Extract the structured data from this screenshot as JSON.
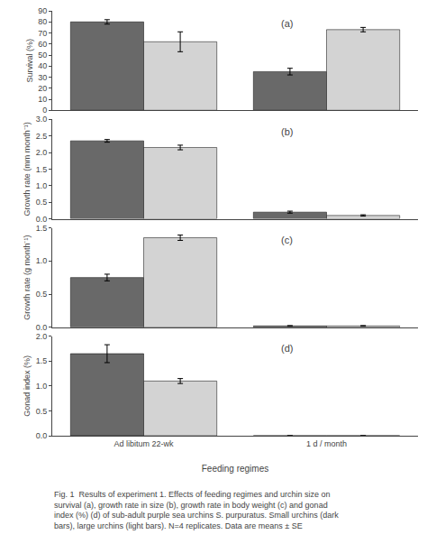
{
  "chart_data": [
    {
      "type": "bar",
      "title": "(a)",
      "ylabel": "Survival (%)",
      "categories": [
        "Ad libitum 22-wk",
        "1 d / month"
      ],
      "series": [
        {
          "color": "#696969",
          "values": [
            80,
            35
          ],
          "errors": [
            2,
            3
          ]
        },
        {
          "color": "#d3d3d3",
          "values": [
            62,
            73
          ],
          "errors": [
            9,
            2
          ]
        }
      ],
      "ylim": [
        0,
        90
      ],
      "yticks": [
        0,
        10,
        20,
        30,
        40,
        50,
        60,
        70,
        80,
        90
      ],
      "grid": false,
      "tick_labels": "y"
    },
    {
      "type": "bar",
      "title": "(b)",
      "ylabel": "Growth rate (mm month⁻¹)",
      "categories": [
        "Ad libitum 22-wk",
        "1 d / month"
      ],
      "series": [
        {
          "color": "#696969",
          "values": [
            2.35,
            0.2
          ],
          "errors": [
            0.04,
            0.03
          ]
        },
        {
          "color": "#d3d3d3",
          "values": [
            2.15,
            0.1
          ],
          "errors": [
            0.07,
            0.02
          ]
        }
      ],
      "ylim": [
        0,
        3
      ],
      "yticks": [
        {
          "value": 0,
          "label": "0.0"
        },
        0.5,
        {
          "value": 1.0,
          "label": "1.0"
        },
        1.5,
        {
          "value": 2.0,
          "label": "2.0"
        },
        2.5,
        {
          "value": 3.0,
          "label": "3.0"
        }
      ],
      "grid": false,
      "tick_labels": "y"
    },
    {
      "type": "bar",
      "title": "(c)",
      "ylabel": "Growth rate (g month⁻¹)",
      "categories": [
        "Ad libitum 22-wk",
        "1 d / month"
      ],
      "series": [
        {
          "color": "#696969",
          "values": [
            0.75,
            0.02
          ],
          "errors": [
            0.05,
            0.005
          ]
        },
        {
          "color": "#d3d3d3",
          "values": [
            1.35,
            0.02
          ],
          "errors": [
            0.04,
            0.005
          ]
        }
      ],
      "ylim": [
        0,
        1.5
      ],
      "yticks": [
        {
          "value": 0,
          "label": "0.0"
        },
        0.5,
        {
          "value": 1.0,
          "label": "1.0"
        },
        1.5
      ],
      "grid": false,
      "tick_labels": "y"
    },
    {
      "type": "bar",
      "title": "(d)",
      "ylabel": "Gonad index (%)",
      "xlabel": "Feeding regimes",
      "categories": [
        "Ad libitum 22-wk",
        "1 d / month"
      ],
      "series": [
        {
          "color": "#696969",
          "values": [
            1.65,
            0.0
          ],
          "errors": [
            0.18,
            0.0
          ]
        },
        {
          "color": "#d3d3d3",
          "values": [
            1.1,
            0.0
          ],
          "errors": [
            0.05,
            0.0
          ]
        }
      ],
      "ylim": [
        0,
        2
      ],
      "yticks": [
        {
          "value": 0,
          "label": "0.0"
        },
        0.5,
        {
          "value": 1.0,
          "label": "1.0"
        },
        1.5,
        {
          "value": 2.0,
          "label": "2.0"
        }
      ],
      "grid": false,
      "annotations": [
        "Fig. 1  Results of experiment 1. Effects of feeding regimes and urchin size on survival (a), growth rate in size (b), growth rate in body weight (c) and gonad index (%) (d) of sub-adult purple sea urchins S. purpuratus. Small urchins (dark bars), large urchins (light bars). N=4 replicates. Data are means ± SE"
      ]
    }
  ]
}
